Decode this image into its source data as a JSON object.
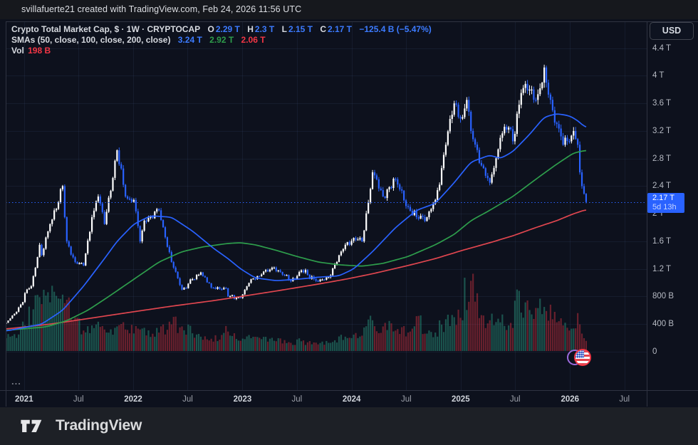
{
  "topbar": {
    "attribution": "svillafuerte21 created with TradingView.com, Feb 24, 2026 11:56 UTC"
  },
  "legend": {
    "title": "Crypto Total Market Cap, $ · 1W · CRYPTOCAP",
    "o_label": "O",
    "o_value": "2.29 T",
    "h_label": "H",
    "h_value": "2.3 T",
    "l_label": "L",
    "l_value": "2.15 T",
    "c_label": "C",
    "c_value": "2.17 T",
    "change_value": "−125.4 B (−5.47%)",
    "sma_title": "SMAs (50, close, 100, close, 200, close)",
    "sma50_value": "3.24 T",
    "sma100_value": "2.92 T",
    "sma200_value": "2.06 T",
    "vol_label": "Vol",
    "vol_value": "198 B",
    "ellipsis": "..."
  },
  "price_axis": {
    "currency": "USD",
    "last_price_label": "2.17 T",
    "countdown": "5d 13h",
    "ticks": [
      {
        "label": "4.4 T",
        "value": 4.4
      },
      {
        "label": "4 T",
        "value": 4.0
      },
      {
        "label": "3.6 T",
        "value": 3.6
      },
      {
        "label": "3.2 T",
        "value": 3.2
      },
      {
        "label": "2.8 T",
        "value": 2.8
      },
      {
        "label": "2.4 T",
        "value": 2.4
      },
      {
        "label": "2 T",
        "value": 2.0
      },
      {
        "label": "1.6 T",
        "value": 1.6
      },
      {
        "label": "1.2 T",
        "value": 1.2
      },
      {
        "label": "800 B",
        "value": 0.8
      },
      {
        "label": "400 B",
        "value": 0.4
      },
      {
        "label": "0",
        "value": 0
      }
    ]
  },
  "time_axis": {
    "ticks": [
      {
        "label": "2021",
        "week": -0.4,
        "major": true
      },
      {
        "label": "Jul",
        "week": 25.6,
        "major": false
      },
      {
        "label": "2022",
        "week": 51.7,
        "major": true
      },
      {
        "label": "Jul",
        "week": 77.7,
        "major": false
      },
      {
        "label": "2023",
        "week": 103.9,
        "major": true
      },
      {
        "label": "Jul",
        "week": 129.9,
        "major": false
      },
      {
        "label": "2024",
        "week": 156.0,
        "major": true
      },
      {
        "label": "Jul",
        "week": 182.1,
        "major": false
      },
      {
        "label": "2025",
        "week": 208.1,
        "major": true
      },
      {
        "label": "Jul",
        "week": 234.1,
        "major": false
      },
      {
        "label": "2026",
        "week": 260.3,
        "major": true
      },
      {
        "label": "Jul",
        "week": 286.3,
        "major": false
      }
    ]
  },
  "footer": {
    "brand": "TradingView"
  },
  "event_icon": {
    "name": "us-economic-event",
    "week": 268
  },
  "colors": {
    "chart_bg": "#0d111d",
    "page_bg": "#16181d",
    "footer_bg": "#1d2026",
    "grid": "rgba(70,90,130,0.16)",
    "border": "#2f3341",
    "up_candle": "#ffffff",
    "down_candle": "#2962ff",
    "sma50": "#2962ff",
    "sma100": "#2e9e4c",
    "sma200": "#e0464f",
    "vol_up": "rgba(44,165,137,0.45)",
    "vol_down": "rgba(242,54,69,0.40)",
    "last_price_line": "#2962ff",
    "label_bg": "#2962ff"
  },
  "chart_data": {
    "type": "candlestick",
    "title": "Crypto Total Market Cap",
    "symbol": "CRYPTOCAP",
    "currency": "USD",
    "timeframe": "1W",
    "x_unit": "weeks since 2021-01-04",
    "first_week": -9,
    "last_week": 268,
    "ylim_T": [
      0,
      4.56
    ],
    "last_bar": {
      "open": 2.29,
      "high": 2.3,
      "low": 2.15,
      "close": 2.17,
      "volume_B": 198
    },
    "close_anchors_T": [
      [
        -9,
        0.42
      ],
      [
        -5,
        0.55
      ],
      [
        -1,
        0.72
      ],
      [
        0,
        0.85
      ],
      [
        3,
        0.95
      ],
      [
        7,
        1.55
      ],
      [
        8,
        1.4
      ],
      [
        12,
        1.85
      ],
      [
        18,
        2.4
      ],
      [
        19,
        1.95
      ],
      [
        20,
        1.6
      ],
      [
        24,
        1.3
      ],
      [
        28,
        1.25
      ],
      [
        32,
        1.95
      ],
      [
        35,
        2.25
      ],
      [
        38,
        1.85
      ],
      [
        44,
        2.92
      ],
      [
        48,
        2.25
      ],
      [
        52,
        2.2
      ],
      [
        55,
        1.6
      ],
      [
        57,
        1.9
      ],
      [
        64,
        2.05
      ],
      [
        70,
        1.3
      ],
      [
        75,
        0.9
      ],
      [
        84,
        1.15
      ],
      [
        89,
        0.93
      ],
      [
        96,
        0.92
      ],
      [
        97,
        0.8
      ],
      [
        103,
        0.78
      ],
      [
        108,
        1.05
      ],
      [
        119,
        1.22
      ],
      [
        127,
        1.02
      ],
      [
        132,
        1.18
      ],
      [
        140,
        1.02
      ],
      [
        145,
        1.08
      ],
      [
        153,
        1.55
      ],
      [
        157,
        1.65
      ],
      [
        161,
        1.6
      ],
      [
        166,
        2.6
      ],
      [
        171,
        2.25
      ],
      [
        177,
        2.5
      ],
      [
        183,
        2.1
      ],
      [
        187,
        1.95
      ],
      [
        192,
        1.95
      ],
      [
        196,
        2.2
      ],
      [
        201,
        3.0
      ],
      [
        205,
        3.6
      ],
      [
        209,
        3.4
      ],
      [
        211,
        3.65
      ],
      [
        213,
        3.2
      ],
      [
        218,
        2.7
      ],
      [
        222,
        2.45
      ],
      [
        227,
        3.1
      ],
      [
        231,
        3.25
      ],
      [
        233,
        3.05
      ],
      [
        237,
        3.75
      ],
      [
        241,
        3.8
      ],
      [
        244,
        3.65
      ],
      [
        247,
        3.9
      ],
      [
        248,
        4.12
      ],
      [
        249,
        3.9
      ],
      [
        252,
        3.5
      ],
      [
        254,
        3.3
      ],
      [
        257,
        3.0
      ],
      [
        260,
        3.05
      ],
      [
        262,
        3.2
      ],
      [
        264,
        3.0
      ],
      [
        265,
        2.6
      ],
      [
        266,
        2.4
      ],
      [
        267,
        2.29
      ],
      [
        268,
        2.17
      ]
    ],
    "volume_anchors_B": [
      [
        -9,
        250
      ],
      [
        0,
        500
      ],
      [
        7,
        1050
      ],
      [
        12,
        950
      ],
      [
        18,
        1100
      ],
      [
        20,
        1000
      ],
      [
        24,
        650
      ],
      [
        28,
        400
      ],
      [
        32,
        500
      ],
      [
        38,
        420
      ],
      [
        44,
        480
      ],
      [
        48,
        420
      ],
      [
        55,
        420
      ],
      [
        64,
        360
      ],
      [
        70,
        520
      ],
      [
        75,
        480
      ],
      [
        84,
        280
      ],
      [
        89,
        240
      ],
      [
        97,
        380
      ],
      [
        103,
        200
      ],
      [
        108,
        250
      ],
      [
        119,
        200
      ],
      [
        127,
        160
      ],
      [
        132,
        190
      ],
      [
        140,
        130
      ],
      [
        145,
        160
      ],
      [
        153,
        280
      ],
      [
        157,
        320
      ],
      [
        161,
        300
      ],
      [
        166,
        600
      ],
      [
        171,
        480
      ],
      [
        177,
        400
      ],
      [
        183,
        360
      ],
      [
        187,
        680
      ],
      [
        192,
        340
      ],
      [
        196,
        360
      ],
      [
        201,
        620
      ],
      [
        205,
        660
      ],
      [
        209,
        600
      ],
      [
        210,
        1430
      ],
      [
        211,
        800
      ],
      [
        213,
        1370
      ],
      [
        218,
        700
      ],
      [
        222,
        600
      ],
      [
        227,
        560
      ],
      [
        231,
        500
      ],
      [
        233,
        450
      ],
      [
        235,
        1200
      ],
      [
        237,
        750
      ],
      [
        241,
        800
      ],
      [
        244,
        840
      ],
      [
        247,
        720
      ],
      [
        248,
        860
      ],
      [
        249,
        780
      ],
      [
        252,
        620
      ],
      [
        254,
        560
      ],
      [
        257,
        500
      ],
      [
        260,
        400
      ],
      [
        262,
        440
      ],
      [
        264,
        740
      ],
      [
        265,
        520
      ],
      [
        266,
        340
      ],
      [
        267,
        250
      ],
      [
        268,
        198
      ]
    ],
    "sma50_anchors_T": [
      [
        -9,
        0.3
      ],
      [
        8,
        0.4
      ],
      [
        18,
        0.6
      ],
      [
        28,
        0.95
      ],
      [
        38,
        1.35
      ],
      [
        44,
        1.6
      ],
      [
        52,
        1.85
      ],
      [
        60,
        1.97
      ],
      [
        70,
        1.95
      ],
      [
        80,
        1.75
      ],
      [
        90,
        1.5
      ],
      [
        97,
        1.35
      ],
      [
        103,
        1.2
      ],
      [
        110,
        1.07
      ],
      [
        120,
        1.03
      ],
      [
        130,
        1.05
      ],
      [
        140,
        1.08
      ],
      [
        150,
        1.1
      ],
      [
        157,
        1.2
      ],
      [
        166,
        1.45
      ],
      [
        177,
        1.8
      ],
      [
        187,
        2.05
      ],
      [
        196,
        2.15
      ],
      [
        205,
        2.45
      ],
      [
        213,
        2.75
      ],
      [
        222,
        2.85
      ],
      [
        227,
        2.8
      ],
      [
        233,
        2.9
      ],
      [
        241,
        3.15
      ],
      [
        248,
        3.4
      ],
      [
        254,
        3.45
      ],
      [
        260,
        3.42
      ],
      [
        264,
        3.35
      ],
      [
        268,
        3.24
      ]
    ],
    "sma100_anchors_T": [
      [
        -9,
        0.31
      ],
      [
        10,
        0.36
      ],
      [
        20,
        0.45
      ],
      [
        30,
        0.6
      ],
      [
        40,
        0.8
      ],
      [
        52,
        1.05
      ],
      [
        64,
        1.3
      ],
      [
        75,
        1.45
      ],
      [
        85,
        1.52
      ],
      [
        97,
        1.57
      ],
      [
        103,
        1.58
      ],
      [
        110,
        1.55
      ],
      [
        120,
        1.47
      ],
      [
        130,
        1.38
      ],
      [
        140,
        1.3
      ],
      [
        150,
        1.26
      ],
      [
        161,
        1.24
      ],
      [
        171,
        1.28
      ],
      [
        183,
        1.38
      ],
      [
        196,
        1.55
      ],
      [
        205,
        1.7
      ],
      [
        213,
        1.9
      ],
      [
        222,
        2.05
      ],
      [
        233,
        2.25
      ],
      [
        244,
        2.5
      ],
      [
        254,
        2.72
      ],
      [
        262,
        2.88
      ],
      [
        268,
        2.92
      ]
    ],
    "sma200_anchors_T": [
      [
        -9,
        0.33
      ],
      [
        12,
        0.4
      ],
      [
        30,
        0.48
      ],
      [
        52,
        0.58
      ],
      [
        70,
        0.66
      ],
      [
        90,
        0.74
      ],
      [
        103,
        0.8
      ],
      [
        120,
        0.88
      ],
      [
        140,
        0.98
      ],
      [
        153,
        1.05
      ],
      [
        166,
        1.13
      ],
      [
        183,
        1.25
      ],
      [
        196,
        1.35
      ],
      [
        209,
        1.47
      ],
      [
        222,
        1.58
      ],
      [
        233,
        1.68
      ],
      [
        244,
        1.8
      ],
      [
        254,
        1.9
      ],
      [
        262,
        2.0
      ],
      [
        268,
        2.06
      ]
    ]
  }
}
